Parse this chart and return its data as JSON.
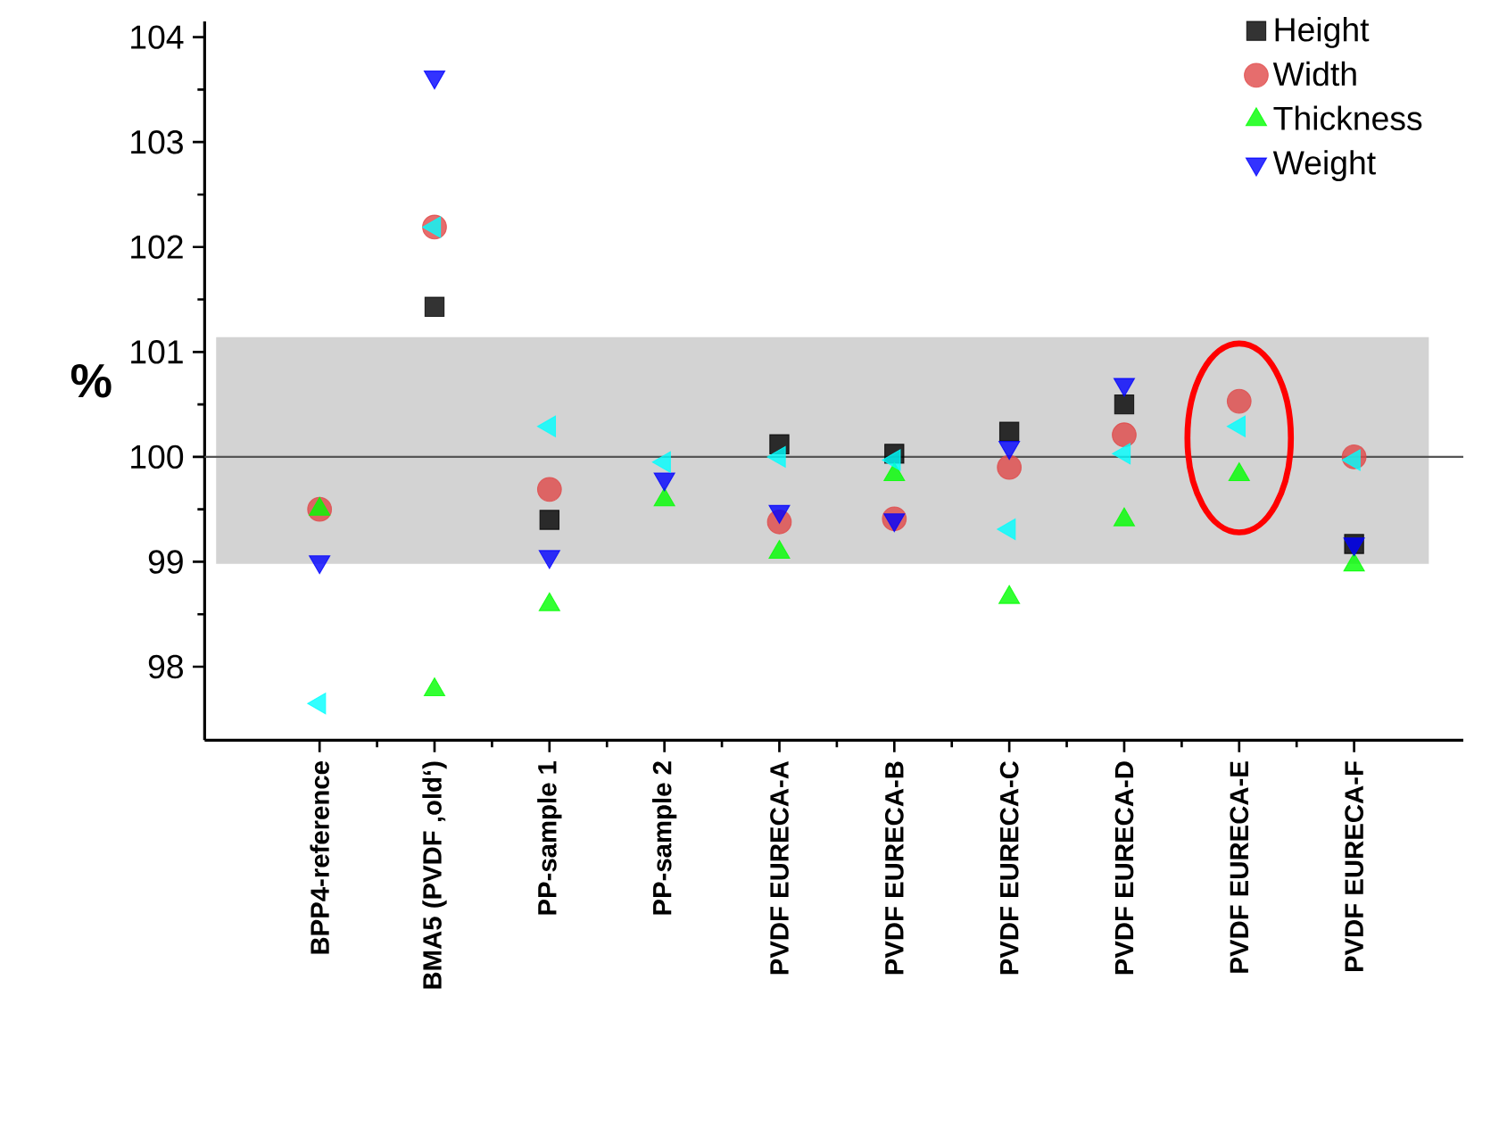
{
  "chart_data": {
    "type": "scatter",
    "ylabel": "%",
    "categories": [
      "BPP4-reference",
      "BMA5 (PVDF ‚old‘)",
      "PP-sample 1",
      "PP-sample 2",
      "PVDF EURECA-A",
      "PVDF EURECA-B",
      "PVDF EURECA-C",
      "PVDF EURECA-D",
      "PVDF EURECA-E",
      "PVDF EURECA-F"
    ],
    "series": [
      {
        "name": "Height",
        "color": "#000000",
        "marker": "square",
        "values": [
          null,
          101.43,
          99.4,
          null,
          100.12,
          100.03,
          100.24,
          100.5,
          null,
          99.17
        ]
      },
      {
        "name": "Width",
        "color": "#e04848",
        "marker": "circle",
        "values": [
          99.5,
          102.19,
          99.69,
          null,
          99.38,
          99.41,
          99.9,
          100.21,
          100.53,
          100.0
        ]
      },
      {
        "name": "Thickness",
        "color": "#00ff00",
        "marker": "triangle",
        "values": [
          99.5,
          97.78,
          98.59,
          99.59,
          99.09,
          99.83,
          98.66,
          99.4,
          99.83,
          98.97
        ]
      },
      {
        "name": "Weight",
        "color": "#0000ff",
        "marker": "triangle-down",
        "values": [
          99.0,
          103.62,
          99.05,
          99.79,
          99.48,
          99.4,
          100.09,
          100.69,
          null,
          99.17
        ]
      },
      {
        "color": "#00ffff",
        "marker": "triangle-left",
        "values": [
          97.65,
          102.19,
          100.29,
          99.95,
          100.0,
          99.97,
          99.31,
          100.03,
          100.29,
          99.97
        ]
      }
    ],
    "ylim": [
      97.3,
      104.15
    ],
    "yticks": [
      98,
      99,
      100,
      101,
      102,
      103,
      104
    ],
    "ref_lines": [
      {
        "axis": "y",
        "value": 100,
        "color": "#555555"
      }
    ],
    "bands": [
      {
        "axis": "y",
        "from": 98.98,
        "to": 101.14,
        "color": "#d3d3d3"
      }
    ],
    "legend": "top right",
    "grid": false
  }
}
